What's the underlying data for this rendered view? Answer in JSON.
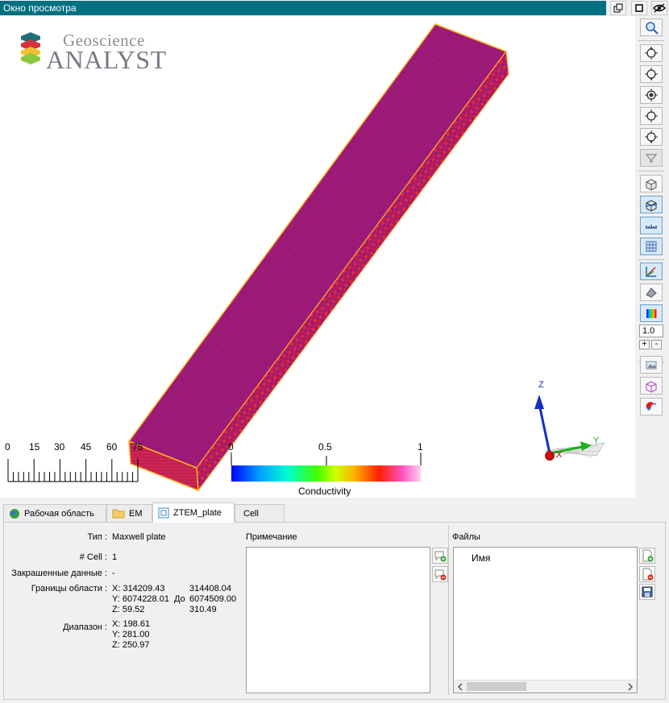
{
  "window": {
    "title": "Окно просмотра"
  },
  "logo": {
    "line1": "Geoscience",
    "line2": "ANALYST"
  },
  "scale_bar": {
    "ticks": [
      "0",
      "15",
      "30",
      "45",
      "60",
      "75"
    ]
  },
  "colorbar": {
    "min_label": "0",
    "mid_label": "0.5",
    "max_label": "1",
    "title": "Conductivity"
  },
  "axes": {
    "z": "Z",
    "y": "Y",
    "x": "X"
  },
  "toolbar": {
    "opacity_value": "1.0",
    "plus": "+",
    "minus": "-"
  },
  "tabs": [
    {
      "label": "Рабочая область",
      "icon": "globe-icon"
    },
    {
      "label": "EM",
      "icon": "folder-icon"
    },
    {
      "label": "ZTEM_plate",
      "icon": "plate-icon"
    },
    {
      "label": "Cell",
      "icon": ""
    }
  ],
  "properties": {
    "type_label": "Тип :",
    "type_value": "Maxwell plate",
    "cell_label": "# Cell :",
    "cell_value": "1",
    "colored_label": "Закрашенные данные :",
    "colored_value": "-",
    "bounds_label": "Границы области :",
    "bounds_x_min": "X: 314209.43",
    "bounds_y_min": "Y: 6074228.01",
    "bounds_z_min": "Z: 59.52",
    "bounds_to": "До",
    "bounds_x_max": "314408.04",
    "bounds_y_max": "6074509.00",
    "bounds_z_max": "310.49",
    "range_label": "Диапазон :",
    "range_x": "X: 198.61",
    "range_y": "Y: 281.00",
    "range_z": "Z: 250.97"
  },
  "notes": {
    "title": "Примечание"
  },
  "files": {
    "title": "Файлы",
    "column_name": "Имя"
  },
  "colors": {
    "titlebar": "#007080",
    "plate": "#9b1a78",
    "edge": "#ff1a1a"
  }
}
